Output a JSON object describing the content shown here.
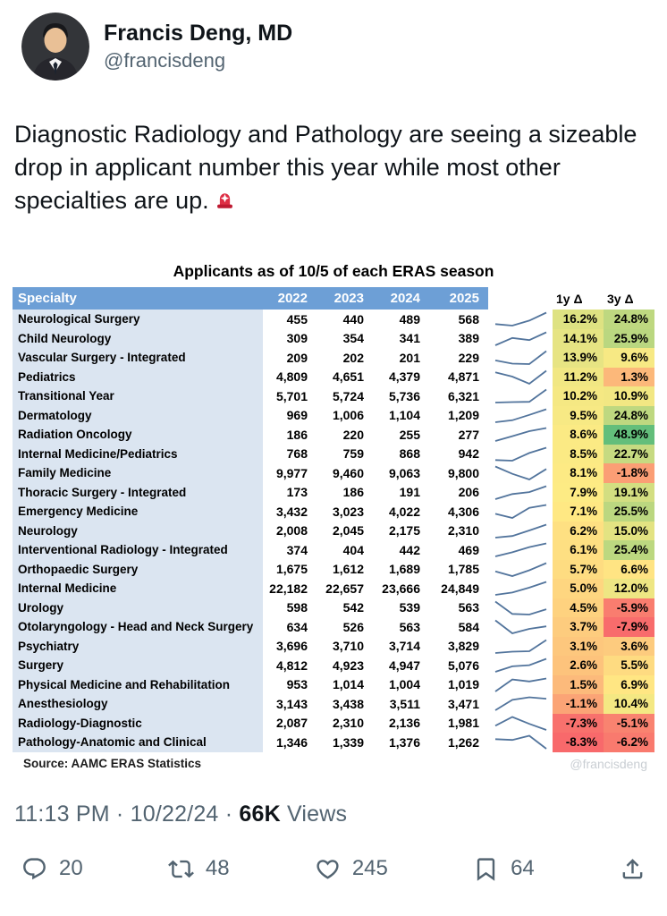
{
  "user": {
    "name": "Francis Deng, MD",
    "handle": "@francisdeng"
  },
  "tweet": {
    "text": "Diagnostic Radiology and Pathology are seeing a sizeable drop in applicant number this year while most other specialties are up.",
    "emoji": "🚨",
    "emoji_icon": "police-light-emoji"
  },
  "chart_data": {
    "type": "table",
    "title": "Applicants as of 10/5 of each ERAS season",
    "specialty_header": "Specialty",
    "year_headers": [
      "2022",
      "2023",
      "2024",
      "2025"
    ],
    "delta_headers": [
      "1y Δ",
      "3y Δ"
    ],
    "rows": [
      {
        "specialty": "Neurological Surgery",
        "values": [
          "455",
          "440",
          "489",
          "568"
        ],
        "delta_1y": 16.2,
        "delta_3y": 24.8
      },
      {
        "specialty": "Child Neurology",
        "values": [
          "309",
          "354",
          "341",
          "389"
        ],
        "delta_1y": 14.1,
        "delta_3y": 25.9
      },
      {
        "specialty": "Vascular Surgery - Integrated",
        "values": [
          "209",
          "202",
          "201",
          "229"
        ],
        "delta_1y": 13.9,
        "delta_3y": 9.6
      },
      {
        "specialty": "Pediatrics",
        "values": [
          "4,809",
          "4,651",
          "4,379",
          "4,871"
        ],
        "delta_1y": 11.2,
        "delta_3y": 1.3
      },
      {
        "specialty": "Transitional Year",
        "values": [
          "5,701",
          "5,724",
          "5,736",
          "6,321"
        ],
        "delta_1y": 10.2,
        "delta_3y": 10.9
      },
      {
        "specialty": "Dermatology",
        "values": [
          "969",
          "1,006",
          "1,104",
          "1,209"
        ],
        "delta_1y": 9.5,
        "delta_3y": 24.8
      },
      {
        "specialty": "Radiation Oncology",
        "values": [
          "186",
          "220",
          "255",
          "277"
        ],
        "delta_1y": 8.6,
        "delta_3y": 48.9
      },
      {
        "specialty": "Internal Medicine/Pediatrics",
        "values": [
          "768",
          "759",
          "868",
          "942"
        ],
        "delta_1y": 8.5,
        "delta_3y": 22.7
      },
      {
        "specialty": "Family Medicine",
        "values": [
          "9,977",
          "9,460",
          "9,063",
          "9,800"
        ],
        "delta_1y": 8.1,
        "delta_3y": -1.8
      },
      {
        "specialty": "Thoracic Surgery - Integrated",
        "values": [
          "173",
          "186",
          "191",
          "206"
        ],
        "delta_1y": 7.9,
        "delta_3y": 19.1
      },
      {
        "specialty": "Emergency Medicine",
        "values": [
          "3,432",
          "3,023",
          "4,022",
          "4,306"
        ],
        "delta_1y": 7.1,
        "delta_3y": 25.5
      },
      {
        "specialty": "Neurology",
        "values": [
          "2,008",
          "2,045",
          "2,175",
          "2,310"
        ],
        "delta_1y": 6.2,
        "delta_3y": 15.0
      },
      {
        "specialty": "Interventional Radiology - Integrated",
        "values": [
          "374",
          "404",
          "442",
          "469"
        ],
        "delta_1y": 6.1,
        "delta_3y": 25.4
      },
      {
        "specialty": "Orthopaedic Surgery",
        "values": [
          "1,675",
          "1,612",
          "1,689",
          "1,785"
        ],
        "delta_1y": 5.7,
        "delta_3y": 6.6
      },
      {
        "specialty": "Internal Medicine",
        "values": [
          "22,182",
          "22,657",
          "23,666",
          "24,849"
        ],
        "delta_1y": 5.0,
        "delta_3y": 12.0
      },
      {
        "specialty": "Urology",
        "values": [
          "598",
          "542",
          "539",
          "563"
        ],
        "delta_1y": 4.5,
        "delta_3y": -5.9
      },
      {
        "specialty": "Otolaryngology - Head and Neck Surgery",
        "values": [
          "634",
          "526",
          "563",
          "584"
        ],
        "delta_1y": 3.7,
        "delta_3y": -7.9
      },
      {
        "specialty": "Psychiatry",
        "values": [
          "3,696",
          "3,710",
          "3,714",
          "3,829"
        ],
        "delta_1y": 3.1,
        "delta_3y": 3.6
      },
      {
        "specialty": "Surgery",
        "values": [
          "4,812",
          "4,923",
          "4,947",
          "5,076"
        ],
        "delta_1y": 2.6,
        "delta_3y": 5.5
      },
      {
        "specialty": "Physical Medicine and Rehabilitation",
        "values": [
          "953",
          "1,014",
          "1,004",
          "1,019"
        ],
        "delta_1y": 1.5,
        "delta_3y": 6.9
      },
      {
        "specialty": "Anesthesiology",
        "values": [
          "3,143",
          "3,438",
          "3,511",
          "3,471"
        ],
        "delta_1y": -1.1,
        "delta_3y": 10.4
      },
      {
        "specialty": "Radiology-Diagnostic",
        "values": [
          "2,087",
          "2,310",
          "2,136",
          "1,981"
        ],
        "delta_1y": -7.3,
        "delta_3y": -5.1
      },
      {
        "specialty": "Pathology-Anatomic and Clinical",
        "values": [
          "1,346",
          "1,339",
          "1,376",
          "1,262"
        ],
        "delta_1y": -8.3,
        "delta_3y": -6.2
      }
    ],
    "source": "Source: AAMC ERAS Statistics",
    "watermark": "@francisdeng",
    "styles": {
      "header_bg": "#6D9FD6",
      "header_text": "#FFFFFF",
      "specialty_bg": "#DBE5F1",
      "sparkline": "#52749C",
      "scale_min_color": "#F8696B",
      "scale_mid_color": "#FFEB84",
      "scale_max_color": "#63BE7B"
    }
  },
  "meta": {
    "time": "11:13 PM",
    "separator": "·",
    "date": "10/22/24",
    "views_count": "66K",
    "views_label": "Views"
  },
  "engagement": {
    "reply_count": "20",
    "repost_count": "48",
    "like_count": "245",
    "bookmark_count": "64"
  }
}
